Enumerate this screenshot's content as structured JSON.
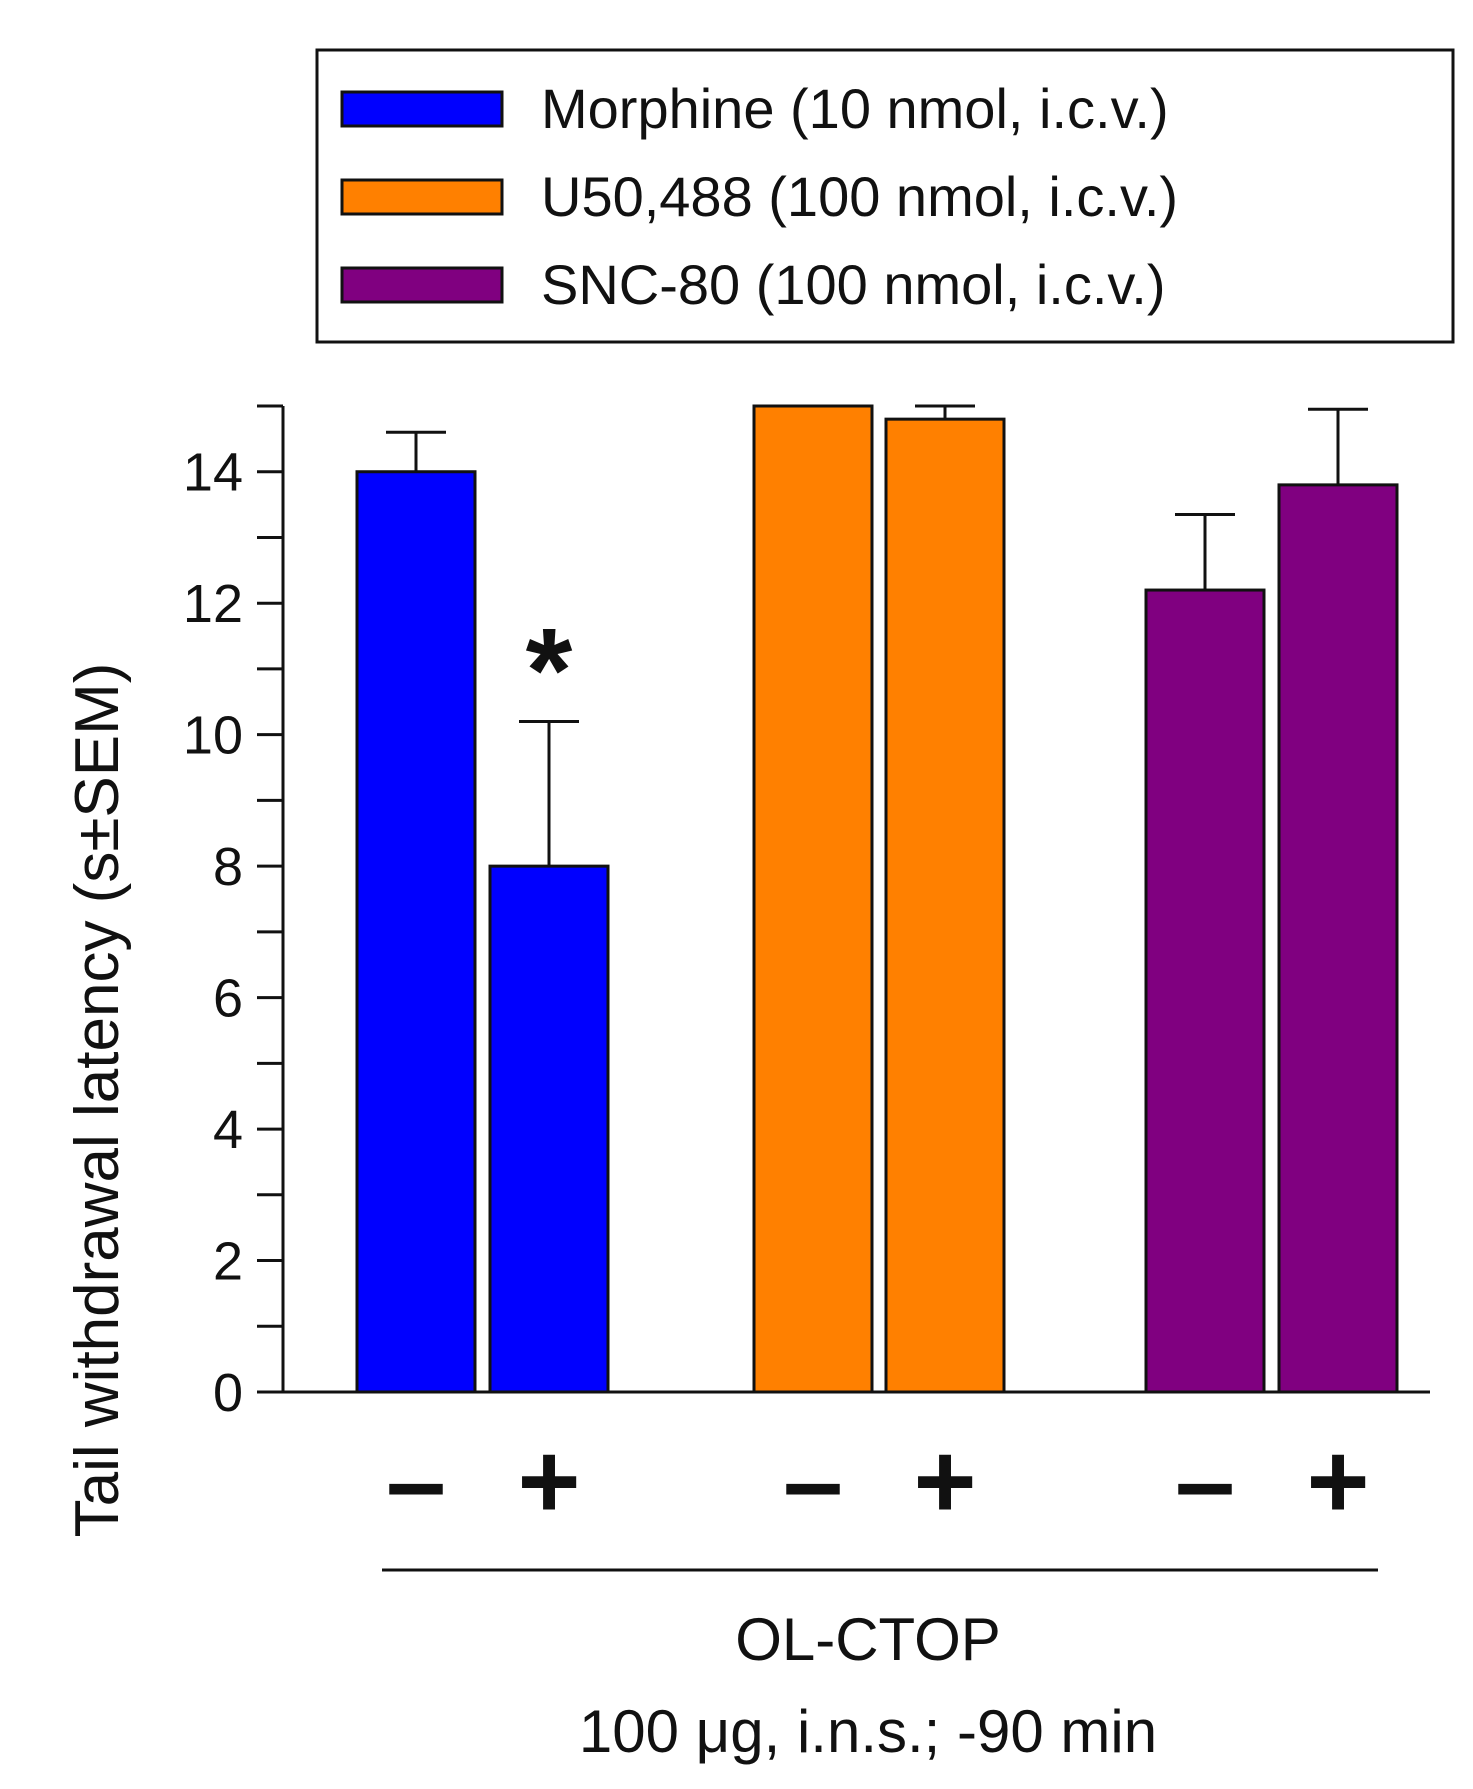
{
  "chart_data": {
    "type": "bar",
    "title": "",
    "ylabel": "Tail withdrawal latency (s±SEM)",
    "xlabel": "",
    "ylim": [
      0,
      15
    ],
    "yticks": [
      0,
      2,
      4,
      6,
      8,
      10,
      12,
      14
    ],
    "tick_labels": [
      "0",
      "2",
      "4",
      "6",
      "8",
      "10",
      "12",
      "14"
    ],
    "groups": [
      {
        "name": "Morphine (10 nmol, i.c.v.)",
        "color": "#0000ff",
        "bars": [
          {
            "label": "–",
            "value": 14.0,
            "sem": 0.6
          },
          {
            "label": "+",
            "value": 8.0,
            "sem": 2.2,
            "significance": "*"
          }
        ]
      },
      {
        "name": "U50,488 (100 nmol, i.c.v.)",
        "color": "#ff8000",
        "bars": [
          {
            "label": "–",
            "value": 15.0,
            "sem": 0.0
          },
          {
            "label": "+",
            "value": 14.8,
            "sem": 0.2
          }
        ]
      },
      {
        "name": "SNC-80 (100 nmol, i.c.v.)",
        "color": "#800080",
        "bars": [
          {
            "label": "–",
            "value": 12.2,
            "sem": 1.15
          },
          {
            "label": "+",
            "value": 13.8,
            "sem": 1.15
          }
        ]
      }
    ],
    "treatment_label": "OL-CTOP",
    "treatment_detail": "100 μg, i.n.s.; -90 min",
    "legend_position": "top"
  }
}
